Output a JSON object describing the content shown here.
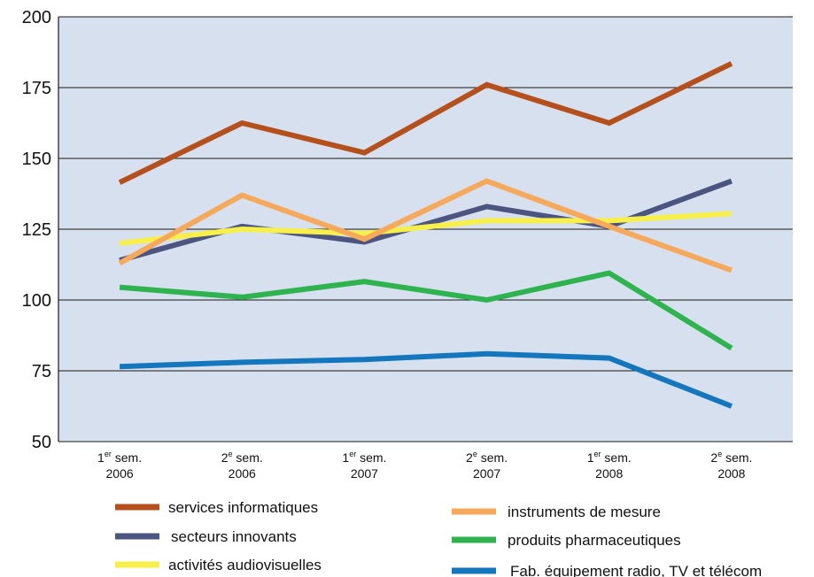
{
  "chart_data": {
    "type": "line",
    "title": "",
    "xlabel": "",
    "ylabel": "",
    "ylim": [
      50,
      200
    ],
    "yticks": [
      50,
      75,
      100,
      125,
      150,
      175,
      200
    ],
    "grid": "horizontal",
    "background": "#d6e0ef",
    "categories": [
      {
        "prefix": "1",
        "sup": "er",
        "suffix": " sem.",
        "year": "2006"
      },
      {
        "prefix": "2",
        "sup": "e",
        "suffix": " sem.",
        "year": "2006"
      },
      {
        "prefix": "1",
        "sup": "er",
        "suffix": " sem.",
        "year": "2007"
      },
      {
        "prefix": "2",
        "sup": "e",
        "suffix": " sem.",
        "year": "2007"
      },
      {
        "prefix": "1",
        "sup": "er",
        "suffix": " sem.",
        "year": "2008"
      },
      {
        "prefix": "2",
        "sup": "e",
        "suffix": " sem.",
        "year": "2008"
      }
    ],
    "legend_position": "bottom",
    "series": [
      {
        "name": "services informatiques",
        "color": "#b5501c",
        "values": [
          141.5,
          162.5,
          152,
          176,
          162.5,
          183.5
        ]
      },
      {
        "name": "secteurs innovants",
        "color": "#4c5580",
        "values": [
          114,
          126,
          120.5,
          133,
          126,
          142
        ]
      },
      {
        "name": "activités audiovisuelles",
        "color": "#f7f04a",
        "values": [
          120,
          125,
          123.5,
          128,
          128,
          130.5
        ]
      },
      {
        "name": "instruments de mesure",
        "color": "#f6a95a",
        "values": [
          113,
          137,
          121.5,
          142,
          126,
          110.5
        ]
      },
      {
        "name": "produits pharmaceutiques",
        "color": "#2eb34f",
        "values": [
          104.5,
          101,
          106.5,
          100,
          109.5,
          83
        ]
      },
      {
        "name": "Fab. équipement radio, TV et télécom",
        "color": "#1476bd",
        "values": [
          76.5,
          78,
          79,
          81,
          79.5,
          62.5
        ]
      }
    ]
  }
}
